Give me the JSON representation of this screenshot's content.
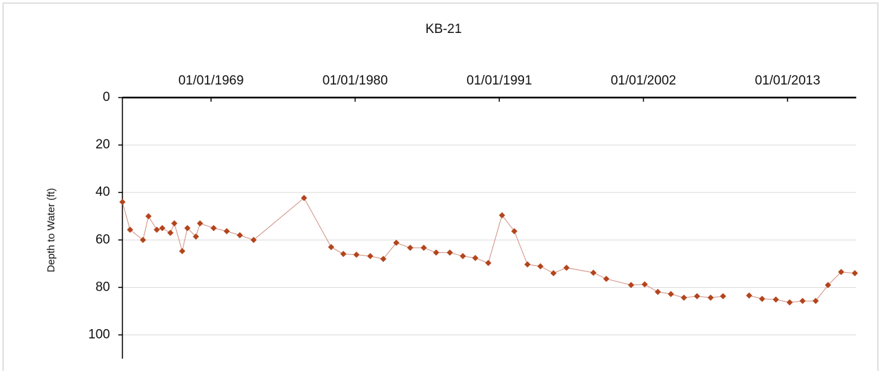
{
  "chart_data": {
    "type": "line",
    "title": "KB-21",
    "ylabel": "Depth to Water (ft)",
    "x": [
      "03/28/1962",
      "10/27/1962",
      "10/22/1963",
      "03/24/1964",
      "11/10/1964",
      "04/12/1965",
      "11/24/1965",
      "03/14/1966",
      "10/20/1966",
      "03/14/1967",
      "11/06/1967",
      "02/28/1968",
      "03/14/1969",
      "03/14/1970",
      "03/14/1971",
      "04/01/1972",
      "02/06/1976",
      "03/03/1978",
      "02/06/1979",
      "02/06/1980",
      "02/24/1981",
      "02/24/1982",
      "02/20/1983",
      "03/14/1984",
      "03/28/1985",
      "03/08/1986",
      "03/24/1987",
      "03/22/1988",
      "03/03/1989",
      "02/28/1990",
      "03/18/1991",
      "02/24/1992",
      "02/24/1993",
      "02/20/1994",
      "02/20/1995",
      "02/18/1996",
      "03/08/1998",
      "03/03/1999",
      "01/22/2001",
      "02/06/2002",
      "02/06/2003",
      "02/06/2004",
      "02/03/2005",
      "02/03/2006",
      "02/18/2007",
      "01/30/2008",
      "01/01/2009",
      "01/26/2010",
      "01/22/2011",
      "02/10/2012",
      "03/01/2013",
      "02/24/2014",
      "02/24/2015",
      "02/03/2016",
      "02/03/2017",
      "02/20/2018"
    ],
    "series": [
      {
        "name": "KB-21",
        "color": "#b4441c",
        "line_color": "#cf8f80",
        "values": [
          44,
          55.7,
          60,
          50,
          55.7,
          55,
          57,
          53,
          64.7,
          55,
          58.6,
          53,
          55,
          56.3,
          58,
          60,
          42.3,
          63,
          65.9,
          66.2,
          66.8,
          68,
          61.2,
          63.3,
          63.3,
          65.3,
          65.3,
          66.8,
          67.6,
          69.7,
          49.6,
          56.3,
          70.3,
          71.1,
          74,
          71.7,
          73.8,
          76.4,
          79,
          78.7,
          81.9,
          82.8,
          84.3,
          83.7,
          84.3,
          83.7,
          null,
          83.4,
          84.8,
          85.1,
          86.3,
          85.7,
          85.7,
          79,
          73.5,
          74
        ]
      }
    ],
    "xlim": [
      "03/28/1962",
      "03/31/2018"
    ],
    "xticks": [
      "01/01/1969",
      "01/01/1980",
      "01/01/1991",
      "01/01/2002",
      "01/01/2013"
    ],
    "ylim": [
      110,
      0
    ],
    "yticks": [
      0,
      20,
      40,
      60,
      80,
      100
    ],
    "grid": true
  }
}
